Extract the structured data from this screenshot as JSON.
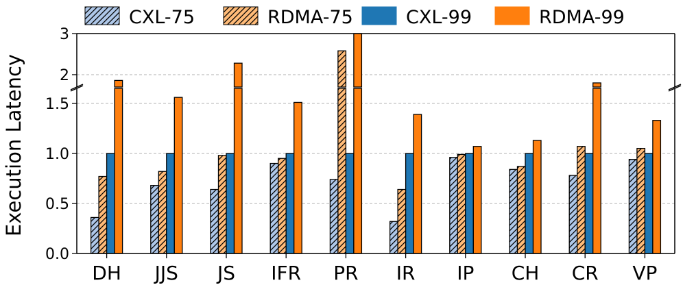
{
  "chart_data": {
    "type": "bar",
    "title": "",
    "xlabel": "",
    "ylabel": "Execution Latency",
    "categories": [
      "DH",
      "JJS",
      "JS",
      "IFR",
      "PR",
      "IR",
      "IP",
      "CH",
      "CR",
      "VP"
    ],
    "series": [
      {
        "name": "CXL-75",
        "color": "#aec7e8",
        "hatch": true,
        "values": [
          0.36,
          0.68,
          0.64,
          0.9,
          0.74,
          0.32,
          0.96,
          0.84,
          0.78,
          0.94
        ]
      },
      {
        "name": "RDMA-75",
        "color": "#ffbb78",
        "hatch": true,
        "values": [
          0.77,
          0.82,
          0.98,
          0.95,
          2.58,
          0.64,
          0.99,
          0.87,
          1.07,
          1.05
        ]
      },
      {
        "name": "CXL-99",
        "color": "#1f77b4",
        "hatch": false,
        "values": [
          1.0,
          1.0,
          1.0,
          1.0,
          1.0,
          1.0,
          1.0,
          1.0,
          1.0,
          1.0
        ]
      },
      {
        "name": "RDMA-99",
        "color": "#ff7f0e",
        "hatch": false,
        "values": [
          1.86,
          1.56,
          2.28,
          1.51,
          3.0,
          1.39,
          1.07,
          1.13,
          1.8,
          1.33
        ]
      }
    ],
    "axis_break": true,
    "lower_ylim": [
      0.0,
      1.65
    ],
    "upper_ylim": [
      1.7,
      3.0
    ],
    "lower_yticks": [
      "0.0",
      "0.5",
      "1.0",
      "1.5"
    ],
    "upper_yticks": [
      "2",
      "3"
    ],
    "grid": "y dashed",
    "legend_position": "top"
  }
}
